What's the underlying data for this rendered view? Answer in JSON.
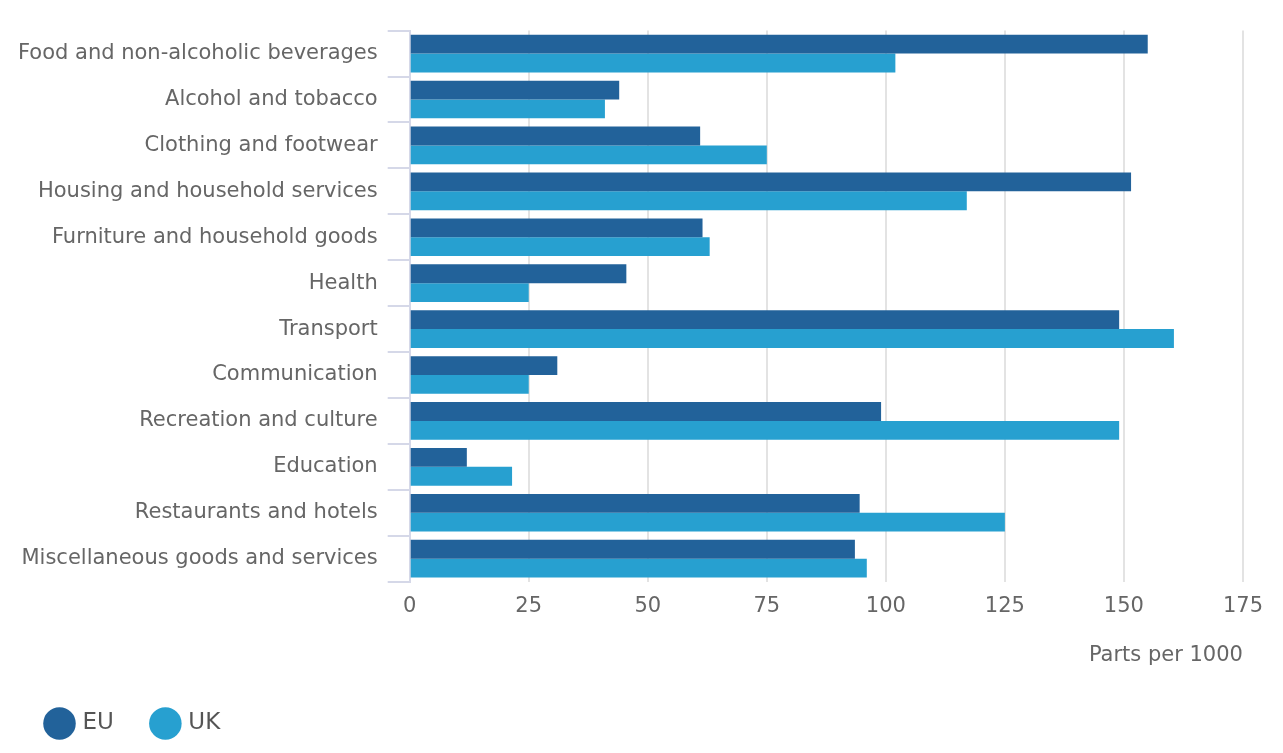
{
  "chart_data": {
    "type": "bar",
    "orientation": "horizontal",
    "xlabel": "Parts per 1000",
    "categories": [
      "Food and non-alcoholic beverages",
      "Alcohol and tobacco",
      "Clothing and footwear",
      "Housing and household services",
      "Furniture and household goods",
      "Health",
      "Transport",
      "Communication",
      "Recreation and culture",
      "Education",
      "Restaurants and hotels",
      "Miscellaneous goods and services"
    ],
    "series": [
      {
        "name": "EU",
        "color": "#22629a",
        "values": [
          155,
          44,
          61,
          151.5,
          61.5,
          45.5,
          149,
          31,
          99,
          12,
          94.5,
          93.5
        ]
      },
      {
        "name": "UK",
        "color": "#27a0d0",
        "values": [
          102,
          41,
          75,
          117,
          63,
          25,
          160.5,
          25,
          149,
          21.5,
          125,
          96
        ]
      }
    ],
    "xlim": [
      0,
      175
    ],
    "xticks": [
      0,
      25,
      50,
      75,
      100,
      125,
      150,
      175
    ],
    "grid": "x",
    "legend": "bottom left"
  }
}
